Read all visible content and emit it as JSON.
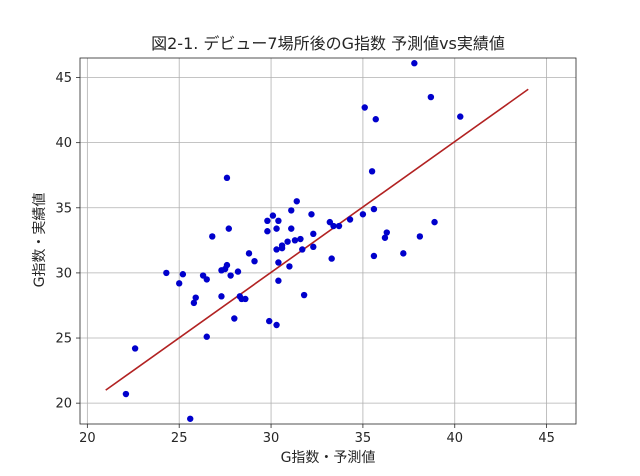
{
  "chart_data": {
    "type": "scatter",
    "title": "図2-1. デビュー7場所後のG指数 予測値vs実績値",
    "xlabel": "G指数・予測値",
    "ylabel": "G指数・実績値",
    "xlim": [
      19.6,
      46.6
    ],
    "ylim": [
      18.4,
      46.5
    ],
    "xticks": [
      20,
      25,
      30,
      35,
      40,
      45
    ],
    "yticks": [
      20,
      25,
      30,
      35,
      40,
      45
    ],
    "grid": true,
    "colors": {
      "points": "#0000cc",
      "line": "#b22222",
      "grid": "#b0b0b0",
      "axes": "#262626"
    },
    "points": [
      [
        37.8,
        46.1
      ],
      [
        35.1,
        42.7
      ],
      [
        38.7,
        43.5
      ],
      [
        40.3,
        42.0
      ],
      [
        35.7,
        41.8
      ],
      [
        35.5,
        37.8
      ],
      [
        27.6,
        37.3
      ],
      [
        31.4,
        35.5
      ],
      [
        35.6,
        34.9
      ],
      [
        31.1,
        34.8
      ],
      [
        32.2,
        34.5
      ],
      [
        35.0,
        34.5
      ],
      [
        30.1,
        34.4
      ],
      [
        29.8,
        34.0
      ],
      [
        30.4,
        34.0
      ],
      [
        33.2,
        33.9
      ],
      [
        38.9,
        33.9
      ],
      [
        34.3,
        34.1
      ],
      [
        33.4,
        33.6
      ],
      [
        33.7,
        33.6
      ],
      [
        30.3,
        33.4
      ],
      [
        31.1,
        33.4
      ],
      [
        29.8,
        33.2
      ],
      [
        32.3,
        33.0
      ],
      [
        36.3,
        33.1
      ],
      [
        27.7,
        33.4
      ],
      [
        36.2,
        32.7
      ],
      [
        38.1,
        32.8
      ],
      [
        26.8,
        32.8
      ],
      [
        31.6,
        32.6
      ],
      [
        31.3,
        32.5
      ],
      [
        30.9,
        32.4
      ],
      [
        30.6,
        32.1
      ],
      [
        32.3,
        32.0
      ],
      [
        30.6,
        31.9
      ],
      [
        30.3,
        31.8
      ],
      [
        31.7,
        31.8
      ],
      [
        37.2,
        31.5
      ],
      [
        35.6,
        31.3
      ],
      [
        33.3,
        31.1
      ],
      [
        28.8,
        31.5
      ],
      [
        29.1,
        30.9
      ],
      [
        30.4,
        30.8
      ],
      [
        27.6,
        30.6
      ],
      [
        31.0,
        30.5
      ],
      [
        27.3,
        30.2
      ],
      [
        27.5,
        30.3
      ],
      [
        24.3,
        30.0
      ],
      [
        25.2,
        29.9
      ],
      [
        26.3,
        29.8
      ],
      [
        27.8,
        29.8
      ],
      [
        26.5,
        29.5
      ],
      [
        30.4,
        29.4
      ],
      [
        25.0,
        29.2
      ],
      [
        28.2,
        30.1
      ],
      [
        28.3,
        28.2
      ],
      [
        27.3,
        28.2
      ],
      [
        28.6,
        28.0
      ],
      [
        28.4,
        28.0
      ],
      [
        31.8,
        28.3
      ],
      [
        25.9,
        28.1
      ],
      [
        25.8,
        27.7
      ],
      [
        28.0,
        26.5
      ],
      [
        29.9,
        26.3
      ],
      [
        30.3,
        26.0
      ],
      [
        26.5,
        25.1
      ],
      [
        22.6,
        24.2
      ],
      [
        22.1,
        20.7
      ],
      [
        25.6,
        18.8
      ]
    ],
    "regression_line": {
      "x": [
        21.0,
        44.0
      ],
      "y": [
        21.0,
        44.1
      ]
    }
  }
}
